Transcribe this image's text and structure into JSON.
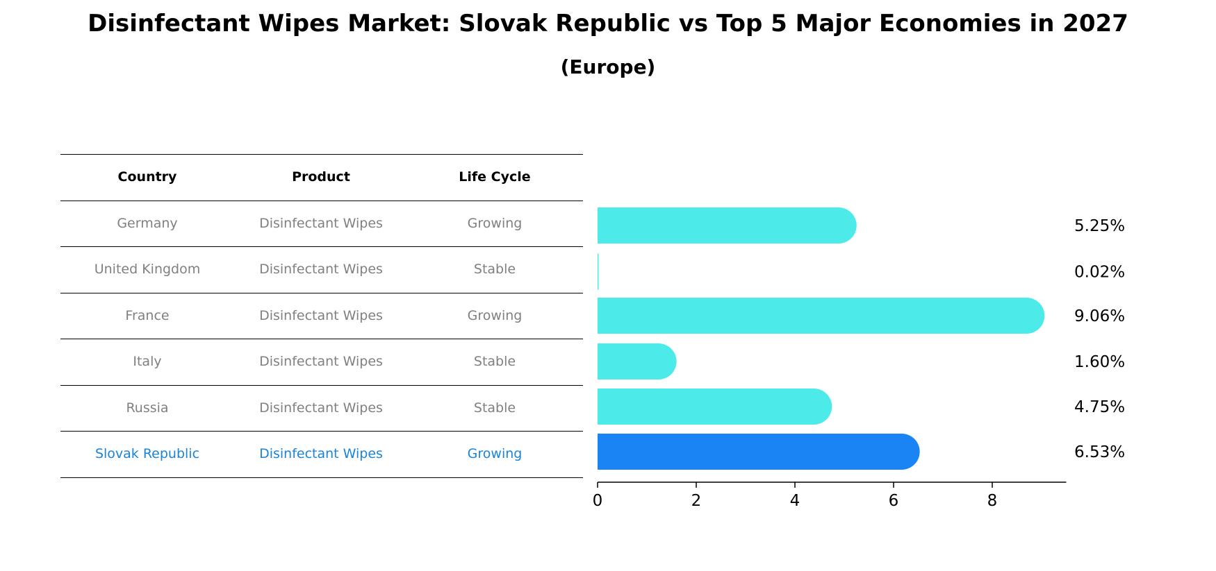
{
  "title": "Disinfectant Wipes Market: Slovak Republic vs Top 5 Major Economies in 2027",
  "subtitle": "(Europe)",
  "table": {
    "headers": [
      "Country",
      "Product",
      "Life Cycle"
    ],
    "rows": [
      {
        "country": "Germany",
        "product": "Disinfectant Wipes",
        "life_cycle": "Growing",
        "highlight": false
      },
      {
        "country": "United Kingdom",
        "product": "Disinfectant Wipes",
        "life_cycle": "Stable",
        "highlight": false
      },
      {
        "country": "France",
        "product": "Disinfectant Wipes",
        "life_cycle": "Growing",
        "highlight": false
      },
      {
        "country": "Italy",
        "product": "Disinfectant Wipes",
        "life_cycle": "Stable",
        "highlight": false
      },
      {
        "country": "Russia",
        "product": "Disinfectant Wipes",
        "life_cycle": "Stable",
        "highlight": false
      },
      {
        "country": "Slovak Republic",
        "product": "Disinfectant Wipes",
        "life_cycle": "Growing",
        "highlight": true
      }
    ]
  },
  "colors": {
    "bar": "#4deaea",
    "highlight": "#1a84f5",
    "highlight_text": "#1a84d8",
    "row_text": "#808080"
  },
  "chart_data": {
    "type": "bar",
    "orientation": "horizontal",
    "categories": [
      "Germany",
      "United Kingdom",
      "France",
      "Italy",
      "Russia",
      "Slovak Republic"
    ],
    "values": [
      5.25,
      0.02,
      9.06,
      1.6,
      4.75,
      6.53
    ],
    "value_labels": [
      "5.25%",
      "0.02%",
      "9.06%",
      "1.60%",
      "4.75%",
      "6.53%"
    ],
    "highlight_category": "Slovak Republic",
    "xlim": [
      0,
      9.5
    ],
    "xticks": [
      0,
      2,
      4,
      6,
      8
    ],
    "xtick_labels": [
      "0",
      "2",
      "4",
      "6",
      "8"
    ],
    "grid": false
  }
}
